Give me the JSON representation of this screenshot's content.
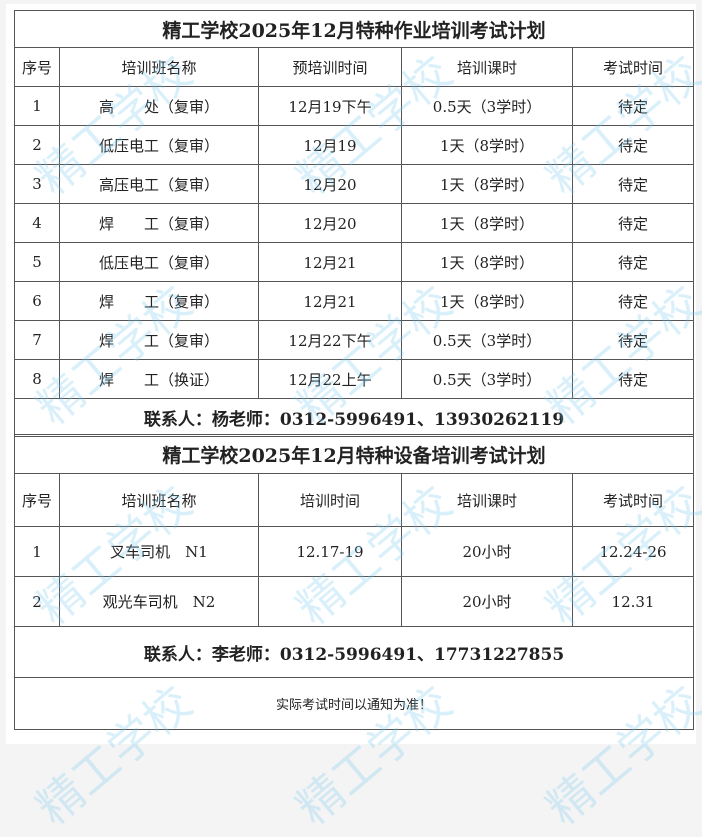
{
  "watermark": "精工学校",
  "t1": {
    "title": "精工学校2025年12月特种作业培训考试计划",
    "headers": [
      "序号",
      "培训班名称",
      "预培训时间",
      "培训课时",
      "考试时间"
    ],
    "rows": [
      [
        "1",
        "高　　处（复审）",
        "12月19下午",
        "0.5天（3学时）",
        "待定"
      ],
      [
        "2",
        "低压电工（复审）",
        "12月19",
        "1天（8学时）",
        "待定"
      ],
      [
        "3",
        "高压电工（复审）",
        "12月20",
        "1天（8学时）",
        "待定"
      ],
      [
        "4",
        "焊　　工（复审）",
        "12月20",
        "1天（8学时）",
        "待定"
      ],
      [
        "5",
        "低压电工（复审）",
        "12月21",
        "1天（8学时）",
        "待定"
      ],
      [
        "6",
        "焊　　工（复审）",
        "12月21",
        "1天（8学时）",
        "待定"
      ],
      [
        "7",
        "焊　　工（复审）",
        "12月22下午",
        "0.5天（3学时）",
        "待定"
      ],
      [
        "8",
        "焊　　工（换证）",
        "12月22上午",
        "0.5天（3学时）",
        "待定"
      ]
    ],
    "contact": "联系人：杨老师：0312-5996491、13930262119"
  },
  "t2": {
    "title": "精工学校2025年12月特种设备培训考试计划",
    "headers": [
      "序号",
      "培训班名称",
      "培训时间",
      "培训课时",
      "考试时间"
    ],
    "rows": [
      [
        "1",
        "叉车司机　N1",
        "12.17-19",
        "20小时",
        "12.24-26"
      ],
      [
        "2",
        "观光车司机　N2",
        "",
        "20小时",
        "12.31"
      ]
    ],
    "contact": "联系人：李老师：0312-5996491、17731227855",
    "note": "实际考试时间以通知为准！"
  }
}
